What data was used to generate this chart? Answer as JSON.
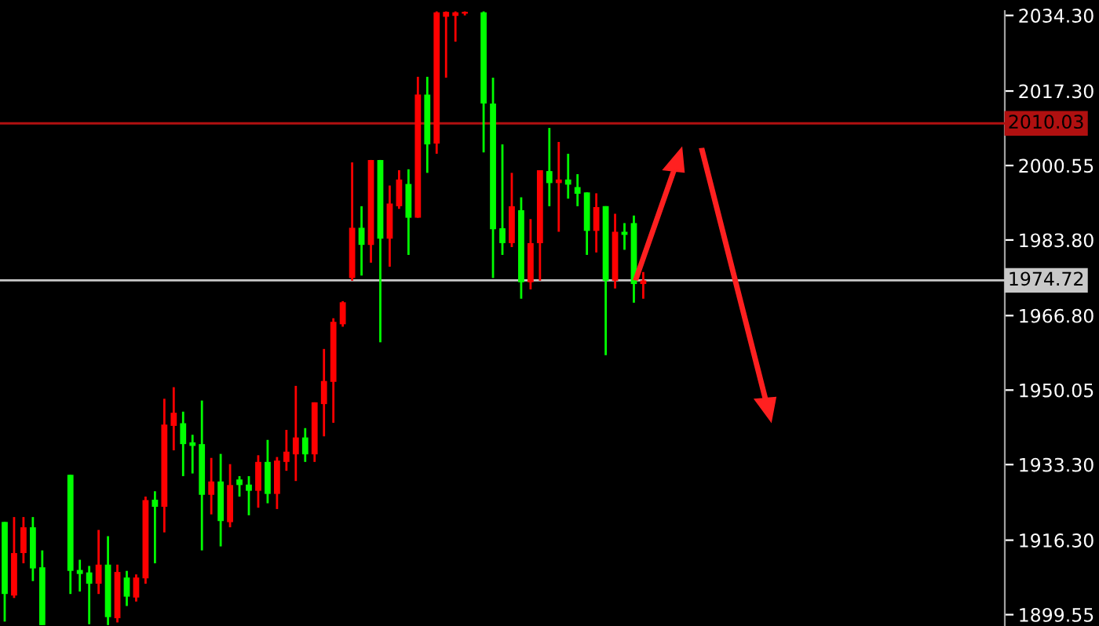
{
  "chart_data": {
    "type": "candlestick",
    "categories": [
      null,
      null,
      null,
      null,
      null,
      null,
      null,
      null,
      null,
      null,
      null,
      null,
      null,
      null,
      null,
      null,
      null,
      null,
      null,
      null,
      null,
      null,
      null,
      null,
      null,
      null,
      null,
      null,
      null,
      null,
      null,
      null,
      null,
      null,
      null,
      null,
      null,
      null,
      null,
      null,
      null,
      null,
      null,
      null,
      null,
      null,
      null,
      null,
      null,
      null,
      null,
      null,
      null,
      null,
      null,
      null,
      null,
      null,
      null,
      null,
      null,
      null,
      null,
      null,
      null,
      null,
      null,
      null,
      null,
      null,
      null,
      null,
      null,
      null,
      null,
      null,
      null,
      null,
      null,
      null,
      null,
      null,
      null,
      null,
      null,
      null,
      null,
      null,
      null,
      null,
      null,
      null,
      null,
      null,
      null,
      null,
      null,
      null,
      null,
      null,
      null,
      null,
      null,
      null,
      null,
      null,
      null
    ],
    "ohlc": [
      [
        1920.4,
        1920.4,
        1898.0,
        1904.2
      ],
      [
        1903.85,
        1921.5,
        1903.3,
        1913.4
      ],
      [
        1913.4,
        1921.5,
        1911.1,
        1919.2
      ],
      [
        1919.2,
        1921.5,
        1907.1,
        1909.95
      ],
      [
        1910.2,
        1914.0,
        1897.2,
        1897.2
      ],
      null,
      null,
      [
        1931.0,
        1931.0,
        1904.2,
        1909.4
      ],
      [
        1909.6,
        1911.9,
        1904.75,
        1908.7
      ],
      [
        1909.05,
        1910.5,
        1897.4,
        1906.5
      ],
      [
        1906.5,
        1918.6,
        1904.2,
        1910.8
      ],
      [
        1910.8,
        1917.2,
        1897.2,
        1899.0
      ],
      [
        1898.75,
        1910.8,
        1897.8,
        1909.15
      ],
      [
        1907.9,
        1909.4,
        1901.5,
        1903.6
      ],
      [
        1903.4,
        1908.6,
        1902.5,
        1907.9
      ],
      [
        1907.7,
        1926.1,
        1906.5,
        1925.3
      ],
      [
        1925.4,
        1927.3,
        1911.1,
        1923.8
      ],
      [
        1923.8,
        1948.1,
        1918.05,
        1942.3
      ],
      [
        1942.0,
        1950.7,
        1936.5,
        1944.95
      ],
      [
        1942.6,
        1945.2,
        1930.7,
        1937.9
      ],
      [
        1938.3,
        1940.0,
        1931.3,
        1937.5
      ],
      [
        1937.9,
        1947.7,
        1914.0,
        1926.5
      ],
      [
        1926.5,
        1934.8,
        1922.1,
        1929.5
      ],
      [
        1929.5,
        1935.7,
        1914.9,
        1920.6
      ],
      [
        1920.35,
        1933.4,
        1919.2,
        1928.7
      ],
      [
        1929.95,
        1930.7,
        1926.1,
        1928.7
      ],
      [
        1928.8,
        1930.7,
        1921.9,
        1927.4
      ],
      [
        1927.4,
        1935.4,
        1923.6,
        1933.9
      ],
      [
        1933.9,
        1938.85,
        1924.6,
        1926.7
      ],
      [
        1926.7,
        1935.0,
        1923.3,
        1934.2
      ],
      [
        1933.9,
        1941.1,
        1931.9,
        1936.2
      ],
      [
        1935.6,
        1951.0,
        1929.6,
        1939.4
      ],
      [
        1939.4,
        1941.5,
        1933.9,
        1935.6
      ],
      [
        1935.6,
        1947.3,
        1933.9,
        1947.3
      ],
      [
        1946.9,
        1959.3,
        1939.65,
        1952.1
      ],
      [
        1951.9,
        1966.2,
        1942.7,
        1965.4
      ],
      [
        1964.85,
        1970.05,
        1964.3,
        1969.8
      ],
      [
        1975.25,
        2001.25,
        1974.65,
        1986.55
      ],
      [
        1986.55,
        1991.4,
        1975.8,
        1982.7
      ],
      [
        1982.7,
        2001.8,
        1978.7,
        2001.8
      ],
      [
        2001.8,
        2001.8,
        1960.8,
        1984.1
      ],
      [
        1984.1,
        1996.05,
        1977.8,
        1992.0
      ],
      [
        1991.4,
        1999.5,
        1990.8,
        1997.4
      ],
      [
        1996.4,
        1999.7,
        1980.45,
        1988.8
      ],
      [
        1988.8,
        2020.5,
        1988.8,
        2016.5
      ],
      [
        2016.5,
        2020.5,
        1998.9,
        2005.3
      ],
      [
        2005.5,
        2035.2,
        2003.2,
        2035.0
      ],
      [
        2034.0,
        2035.2,
        2020.3,
        2035.1
      ],
      [
        2034.2,
        2035.2,
        2028.4,
        2035.0
      ],
      [
        2034.7,
        2035.2,
        2034.3,
        2035.1
      ],
      null,
      [
        2035.0,
        2035.2,
        2003.5,
        2014.5
      ],
      [
        2014.5,
        2020.3,
        1975.25,
        1986.2
      ],
      [
        1986.45,
        2005.3,
        1980.45,
        1983.1
      ],
      [
        1983.1,
        1998.9,
        1982.2,
        1991.4
      ],
      [
        1990.5,
        1993.4,
        1970.6,
        1974.3
      ],
      [
        1974.3,
        1988.5,
        1972.7,
        1983.1
      ],
      [
        1983.1,
        1999.5,
        1974.65,
        1999.5
      ],
      [
        1999.3,
        2009.0,
        1991.4,
        1996.6
      ],
      [
        1996.6,
        2005.85,
        1985.65,
        1997.4
      ],
      [
        1997.4,
        2003.2,
        1993.1,
        1996.25
      ],
      [
        1995.7,
        1998.6,
        1991.4,
        1994.2
      ],
      [
        1994.5,
        1994.5,
        1980.45,
        1985.85
      ],
      [
        1985.85,
        1994.3,
        1981.0,
        1991.2
      ],
      [
        1991.4,
        1991.4,
        1957.9,
        1974.65
      ],
      [
        1974.65,
        1989.7,
        1972.9,
        1985.65
      ],
      [
        1985.65,
        1987.6,
        1981.6,
        1984.95
      ],
      [
        1987.6,
        1989.3,
        1969.7,
        1973.9
      ],
      [
        1973.9,
        1976.6,
        1970.6,
        1974.72
      ],
      null,
      null,
      null,
      null,
      null,
      null,
      null,
      null,
      null,
      null,
      null,
      null,
      null,
      null,
      null,
      null,
      null,
      null,
      null,
      null,
      null,
      null,
      null,
      null,
      null,
      null,
      null,
      null,
      null,
      null,
      null,
      null,
      null,
      null,
      null,
      null,
      null,
      null
    ],
    "colors": [
      "#00ff00",
      "#ff0000",
      "#ff0000",
      "#00ff00",
      "#00ff00",
      null,
      null,
      "#00ff00",
      "#00ff00",
      "#00ff00",
      "#ff0000",
      "#00ff00",
      "#ff0000",
      "#00ff00",
      "#ff0000",
      "#ff0000",
      "#00ff00",
      "#ff0000",
      "#ff0000",
      "#00ff00",
      "#00ff00",
      "#00ff00",
      "#ff0000",
      "#00ff00",
      "#ff0000",
      "#00ff00",
      "#00ff00",
      "#ff0000",
      "#00ff00",
      "#ff0000",
      "#ff0000",
      "#ff0000",
      "#00ff00",
      "#ff0000",
      "#ff0000",
      "#ff0000",
      "#ff0000",
      "#ff0000",
      "#00ff00",
      "#ff0000",
      "#00ff00",
      "#ff0000",
      "#ff0000",
      "#00ff00",
      "#ff0000",
      "#00ff00",
      "#ff0000",
      "#ff0000",
      "#ff0000",
      "#ff0000",
      null,
      "#00ff00",
      "#00ff00",
      "#00ff00",
      "#ff0000",
      "#00ff00",
      "#ff0000",
      "#ff0000",
      "#00ff00",
      "#ff0000",
      "#00ff00",
      "#00ff00",
      "#00ff00",
      "#ff0000",
      "#00ff00",
      "#ff0000",
      "#00ff00",
      "#00ff00",
      "#ff0000",
      null,
      null,
      null,
      null,
      null,
      null,
      null,
      null,
      null,
      null,
      null,
      null,
      null,
      null,
      null,
      null,
      null,
      null,
      null,
      null,
      null,
      null,
      null,
      null,
      null,
      null,
      null,
      null,
      null,
      null,
      null,
      null,
      null,
      null,
      null,
      null,
      null,
      null
    ],
    "ylim": [
      1897.0,
      2035.3
    ],
    "yticks": [
      {
        "value": 2034.3,
        "label": "2034.30"
      },
      {
        "value": 2017.3,
        "label": "2017.30"
      },
      {
        "value": 2000.55,
        "label": "2000.55"
      },
      {
        "value": 1983.8,
        "label": "1983.80"
      },
      {
        "value": 1966.8,
        "label": "1966.80"
      },
      {
        "value": 1950.05,
        "label": "1950.05"
      },
      {
        "value": 1933.3,
        "label": "1933.30"
      },
      {
        "value": 1916.3,
        "label": "1916.30"
      },
      {
        "value": 1899.55,
        "label": "1899.55"
      }
    ],
    "ref_lines": [
      {
        "axis": "y",
        "value": 2010.03,
        "label": "2010.03",
        "color": "#b01010"
      },
      {
        "axis": "y",
        "value": 1974.72,
        "label": "1974.72",
        "color": "#c8c8c8"
      }
    ],
    "tick_labels": "y",
    "grid": false
  }
}
